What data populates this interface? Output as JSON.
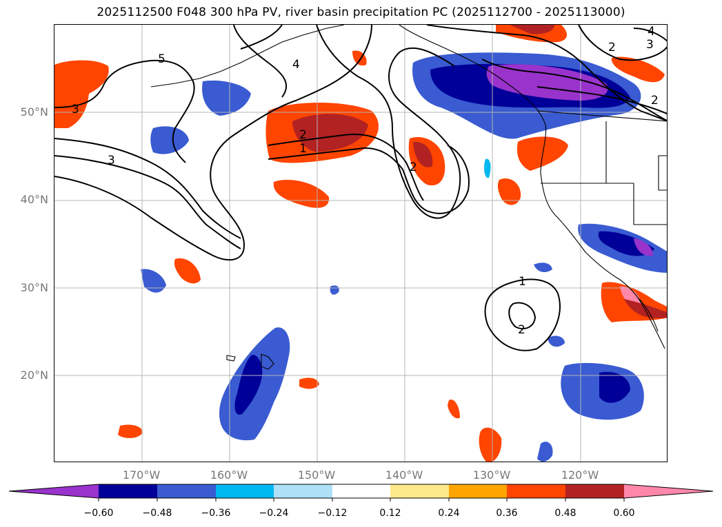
{
  "title": "2025112500 F048 300 hPa PV, river basin precipitation PC (2025112700 - 2025113000)",
  "lat_labels": [
    "50°N",
    "40°N",
    "30°N",
    "20°N"
  ],
  "lon_labels": [
    "170°W",
    "160°W",
    "150°W",
    "140°W",
    "130°W",
    "120°W"
  ],
  "contour_labels": [
    "5",
    "4",
    "3",
    "3",
    "2",
    "1",
    "2",
    "2",
    "3",
    "4",
    "2",
    "1",
    "2"
  ],
  "colorbar": {
    "colors": [
      "#9933cc",
      "#000099",
      "#3a5bd1",
      "#00b8f0",
      "#aee1f8",
      "#ffffff",
      "#fce98a",
      "#ffa500",
      "#ff4500",
      "#b22222",
      "#ff88aa"
    ],
    "tick_labels": [
      "−0.60",
      "−0.48",
      "−0.36",
      "−0.24",
      "−0.12",
      "0.12",
      "0.24",
      "0.36",
      "0.48",
      "0.60"
    ]
  }
}
